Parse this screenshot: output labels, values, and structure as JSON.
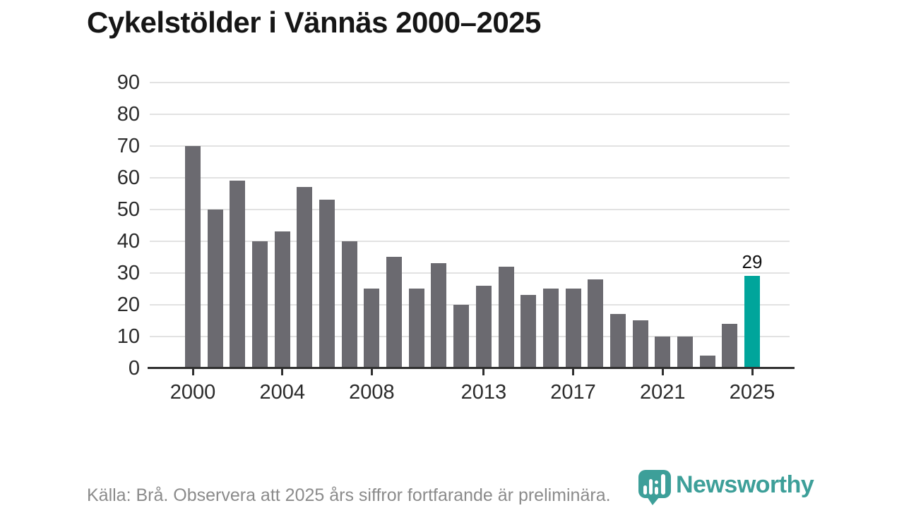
{
  "title": "Cykelstölder i Vännäs 2000–2025",
  "footer": {
    "source": "Källa: Brå. Observera att 2025 års siffror fortfarande är preliminära.",
    "brand": "Newsworthy"
  },
  "colors": {
    "bar_default": "#6b6a70",
    "bar_highlight": "#00a59b",
    "grid": "#e2e2e2",
    "axis": "#2f2f2f",
    "tick_label": "#2b2b2b",
    "title": "#161616",
    "footer_text": "#8b8b8b",
    "logo": "#3d9f99",
    "annotation": "#111111"
  },
  "chart_data": {
    "type": "bar",
    "title": "Cykelstölder i Vännäs 2000–2025",
    "x": [
      2000,
      2001,
      2002,
      2003,
      2004,
      2005,
      2006,
      2007,
      2008,
      2009,
      2010,
      2011,
      2012,
      2013,
      2014,
      2015,
      2016,
      2017,
      2018,
      2019,
      2020,
      2021,
      2022,
      2023,
      2024,
      2025
    ],
    "values": [
      70,
      50,
      59,
      40,
      43,
      57,
      53,
      40,
      25,
      35,
      25,
      33,
      20,
      26,
      32,
      23,
      25,
      25,
      28,
      17,
      15,
      10,
      10,
      4,
      14,
      29
    ],
    "highlight_index": 25,
    "annotation": {
      "index": 25,
      "text": "29"
    },
    "x_ticks": [
      2000,
      2004,
      2008,
      2013,
      2017,
      2021,
      2025
    ],
    "y_ticks": [
      0,
      10,
      20,
      30,
      40,
      50,
      60,
      70,
      80,
      90
    ],
    "ylim": [
      0,
      90
    ],
    "xlabel": "",
    "ylabel": "",
    "grid": true,
    "legend": "none",
    "source": "Källa: Brå. Observera att 2025 års siffror fortfarande är preliminära."
  }
}
